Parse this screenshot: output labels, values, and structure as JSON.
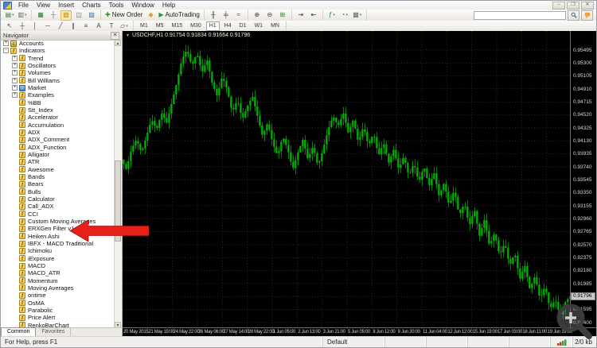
{
  "app": {
    "menu": [
      "File",
      "View",
      "Insert",
      "Charts",
      "Tools",
      "Window",
      "Help"
    ],
    "window_controls": [
      "–",
      "❐",
      "✕"
    ]
  },
  "toolbar_main": {
    "groups": [
      {
        "items": [
          {
            "name": "new-chart-button",
            "glyph": "▤",
            "color": "#2e7d32",
            "dd": true
          },
          {
            "name": "profiles-button",
            "glyph": "▥",
            "color": "#5b6670",
            "dd": true
          }
        ]
      },
      {
        "items": [
          {
            "name": "market-watch-button",
            "glyph": "▦",
            "color": "#2e7d32"
          },
          {
            "name": "data-window-button",
            "glyph": "┼",
            "color": "#5b6670"
          },
          {
            "name": "navigator-button",
            "glyph": "▧",
            "color": "#b8860b",
            "active": true
          },
          {
            "name": "terminal-button",
            "glyph": "◫",
            "color": "#5b6670"
          },
          {
            "name": "strategy-tester-button",
            "glyph": "▨",
            "color": "#3b6ea5"
          }
        ]
      },
      {
        "items": [
          {
            "name": "new-order-button",
            "glyph": "✚",
            "color": "#1f9e2e",
            "label": "New Order"
          },
          {
            "name": "metaeditor-button",
            "glyph": "◆",
            "color": "#d9a520"
          },
          {
            "name": "autotrading-button",
            "glyph": "▶",
            "color": "#1f9e2e",
            "label": "AutoTrading"
          }
        ]
      },
      {
        "items": [
          {
            "name": "bar-chart-button",
            "glyph": "╫",
            "color": "#444444"
          },
          {
            "name": "candlestick-button",
            "glyph": "╪",
            "color": "#444444"
          },
          {
            "name": "line-chart-button",
            "glyph": "≈",
            "color": "#444444"
          }
        ]
      },
      {
        "items": [
          {
            "name": "zoom-in-button",
            "glyph": "⊕",
            "color": "#444444"
          },
          {
            "name": "zoom-out-button",
            "glyph": "⊖",
            "color": "#444444"
          },
          {
            "name": "tile-windows-button",
            "glyph": "⊞",
            "color": "#2e7d32"
          }
        ]
      },
      {
        "items": [
          {
            "name": "auto-scroll-button",
            "glyph": "⇥",
            "color": "#444444"
          },
          {
            "name": "chart-shift-button",
            "glyph": "⇤",
            "color": "#444444"
          }
        ]
      },
      {
        "items": [
          {
            "name": "indicators-button",
            "glyph": "ƒ",
            "color": "#2e7d32",
            "dd": true
          },
          {
            "name": "periods-button",
            "glyph": "◔",
            "color": "#3b6ea5",
            "dd": true
          },
          {
            "name": "templates-button",
            "glyph": "▩",
            "color": "#5b6670",
            "dd": true
          }
        ]
      }
    ],
    "search_placeholder": ""
  },
  "drawing_tools": [
    {
      "name": "cursor-tool",
      "glyph": "↖"
    },
    {
      "name": "crosshair-tool",
      "glyph": "┼"
    },
    {
      "name": "vertical-line-tool",
      "glyph": "│"
    },
    {
      "name": "horizontal-line-tool",
      "glyph": "─"
    },
    {
      "name": "trendline-tool",
      "glyph": "╱"
    },
    {
      "name": "channel-tool",
      "glyph": "∥"
    },
    {
      "name": "fibonacci-tool",
      "glyph": "≡"
    },
    {
      "name": "text-tool",
      "glyph": "A"
    },
    {
      "name": "label-tool",
      "glyph": "T"
    },
    {
      "name": "shapes-tool",
      "glyph": "▱",
      "dd": true
    }
  ],
  "timeframes": {
    "items": [
      "M1",
      "M5",
      "M15",
      "M30",
      "H1",
      "H4",
      "D1",
      "W1",
      "MN"
    ],
    "active": "H1"
  },
  "navigator": {
    "title": "Navigator",
    "close_glyph": "✕",
    "tabs": [
      {
        "label": "Common",
        "active": true
      },
      {
        "label": "Favorites",
        "active": false
      }
    ],
    "tree": [
      {
        "label": "Accounts",
        "depth": 0,
        "expand": "+",
        "icon": "accounts"
      },
      {
        "label": "Indicators",
        "depth": 0,
        "expand": "-",
        "icon": "folder"
      },
      {
        "label": "Trend",
        "depth": 1,
        "expand": "+",
        "icon": "folder"
      },
      {
        "label": "Oscillators",
        "depth": 1,
        "expand": "+",
        "icon": "folder"
      },
      {
        "label": "Volumes",
        "depth": 1,
        "expand": "+",
        "icon": "folder"
      },
      {
        "label": "Bill Williams",
        "depth": 1,
        "expand": "+",
        "icon": "folder"
      },
      {
        "label": "Market",
        "depth": 1,
        "expand": "+",
        "icon": "market"
      },
      {
        "label": "Examples",
        "depth": 1,
        "expand": "+",
        "icon": "examples"
      },
      {
        "label": "%BB",
        "depth": 1,
        "expand": null,
        "icon": "fx"
      },
      {
        "label": "Stt_Index",
        "depth": 1,
        "expand": null,
        "icon": "fx"
      },
      {
        "label": "Accelerator",
        "depth": 1,
        "expand": null,
        "icon": "fx"
      },
      {
        "label": "Accumulation",
        "depth": 1,
        "expand": null,
        "icon": "fx"
      },
      {
        "label": "ADX",
        "depth": 1,
        "expand": null,
        "icon": "fx"
      },
      {
        "label": "ADX_Comment",
        "depth": 1,
        "expand": null,
        "icon": "fx"
      },
      {
        "label": "ADX_Function",
        "depth": 1,
        "expand": null,
        "icon": "fx"
      },
      {
        "label": "Alligator",
        "depth": 1,
        "expand": null,
        "icon": "fx"
      },
      {
        "label": "ATR",
        "depth": 1,
        "expand": null,
        "icon": "fx"
      },
      {
        "label": "Awesome",
        "depth": 1,
        "expand": null,
        "icon": "fx"
      },
      {
        "label": "Bands",
        "depth": 1,
        "expand": null,
        "icon": "fx"
      },
      {
        "label": "Bears",
        "depth": 1,
        "expand": null,
        "icon": "fx"
      },
      {
        "label": "Bulls",
        "depth": 1,
        "expand": null,
        "icon": "fx"
      },
      {
        "label": "Calculator",
        "depth": 1,
        "expand": null,
        "icon": "fx"
      },
      {
        "label": "Call_ADX",
        "depth": 1,
        "expand": null,
        "icon": "fx"
      },
      {
        "label": "CCI",
        "depth": 1,
        "expand": null,
        "icon": "fx"
      },
      {
        "label": "Custom Moving Averages",
        "depth": 1,
        "expand": null,
        "icon": "fx"
      },
      {
        "label": "ERXGen Filter v1.8",
        "depth": 1,
        "expand": null,
        "icon": "fx",
        "arrow_target": true
      },
      {
        "label": "Heiken Ashi",
        "depth": 1,
        "expand": null,
        "icon": "fx"
      },
      {
        "label": "IBFX - MACD Traditional",
        "depth": 1,
        "expand": null,
        "icon": "fx"
      },
      {
        "label": "Ichimoku",
        "depth": 1,
        "expand": null,
        "icon": "fx"
      },
      {
        "label": "iExposure",
        "depth": 1,
        "expand": null,
        "icon": "fx"
      },
      {
        "label": "MACD",
        "depth": 1,
        "expand": null,
        "icon": "fx"
      },
      {
        "label": "MACD_ATR",
        "depth": 1,
        "expand": null,
        "icon": "fx"
      },
      {
        "label": "Momentum",
        "depth": 1,
        "expand": null,
        "icon": "fx"
      },
      {
        "label": "Moving Averages",
        "depth": 1,
        "expand": null,
        "icon": "fx"
      },
      {
        "label": "ontime",
        "depth": 1,
        "expand": null,
        "icon": "fx"
      },
      {
        "label": "OsMA",
        "depth": 1,
        "expand": null,
        "icon": "fx"
      },
      {
        "label": "Parabolic",
        "depth": 1,
        "expand": null,
        "icon": "fx"
      },
      {
        "label": "Price Alert",
        "depth": 1,
        "expand": null,
        "icon": "fx"
      },
      {
        "label": "RenkoBarChart",
        "depth": 1,
        "expand": null,
        "icon": "fx"
      }
    ]
  },
  "chart_data": {
    "type": "candlestick",
    "symbol": "USDCHF",
    "timeframe": "H1",
    "title": "USDCHF,H1  0.91754 0.91834 0.91664 0.91796",
    "ohlc": {
      "open": 0.91754,
      "high": 0.91834,
      "low": 0.91664,
      "close": 0.91796
    },
    "current_price": "0.91796",
    "y_axis": {
      "range_top": 0.9578,
      "range_bottom": 0.9128,
      "ticks": [
        "0.95495",
        "0.95300",
        "0.95105",
        "0.94910",
        "0.94715",
        "0.94520",
        "0.94325",
        "0.94130",
        "0.93935",
        "0.93740",
        "0.93545",
        "0.93350",
        "0.93155",
        "0.92960",
        "0.92765",
        "0.92570",
        "0.92375",
        "0.92180",
        "0.91985",
        "0.91595",
        "0.91400"
      ]
    },
    "x_ticks": [
      "20 May 2015",
      "21 May 15:00",
      "24 May 22:00",
      "26 May 06:00",
      "27 May 14:00",
      "28 May 22:00",
      "1 Jun 05:00",
      "2 Jun 13:00",
      "3 Jun 21:00",
      "5 Jun 05:00",
      "8 Jun 12:00",
      "9 Jun 20:00",
      "11 Jun 04:00",
      "12 Jun 12:00",
      "15 Jun 19:00",
      "17 Jun 03:00",
      "18 Jun 11:00",
      "19 Jun 19:00"
    ],
    "price_path": [
      0.9385,
      0.937,
      0.94,
      0.9415,
      0.9395,
      0.942,
      0.9445,
      0.943,
      0.9455,
      0.944,
      0.947,
      0.95,
      0.9535,
      0.955,
      0.9525,
      0.9545,
      0.9515,
      0.9535,
      0.95,
      0.948,
      0.951,
      0.949,
      0.9455,
      0.9475,
      0.9445,
      0.9465,
      0.948,
      0.945,
      0.942,
      0.944,
      0.941,
      0.939,
      0.942,
      0.94,
      0.937,
      0.9395,
      0.9415,
      0.9385,
      0.9405,
      0.9375,
      0.94,
      0.943,
      0.945,
      0.9435,
      0.9455,
      0.9425,
      0.9445,
      0.941,
      0.9435,
      0.9405,
      0.9425,
      0.939,
      0.941,
      0.938,
      0.94,
      0.937,
      0.939,
      0.936,
      0.938,
      0.935,
      0.9375,
      0.9345,
      0.9365,
      0.933,
      0.935,
      0.9315,
      0.934,
      0.93,
      0.932,
      0.9285,
      0.931,
      0.927,
      0.9295,
      0.9255,
      0.9275,
      0.924,
      0.926,
      0.9225,
      0.9245,
      0.9205,
      0.9225,
      0.919,
      0.921,
      0.9175,
      0.9195,
      0.916,
      0.9175,
      0.915,
      0.917,
      0.918
    ],
    "style": {
      "bg": "#000000",
      "grid": "#3c3c3c",
      "candle": "#00b200",
      "wick": "#008f00",
      "axis_text": "#d8d8d8"
    }
  },
  "annotation": {
    "arrow_color": "#e8201a",
    "arrow_points_to": "ERXGen Filter v1.8"
  },
  "statusbar": {
    "help": "For Help, press F1",
    "profile": "Default",
    "empty_cells": 4,
    "traffic": "2/0 kb"
  }
}
